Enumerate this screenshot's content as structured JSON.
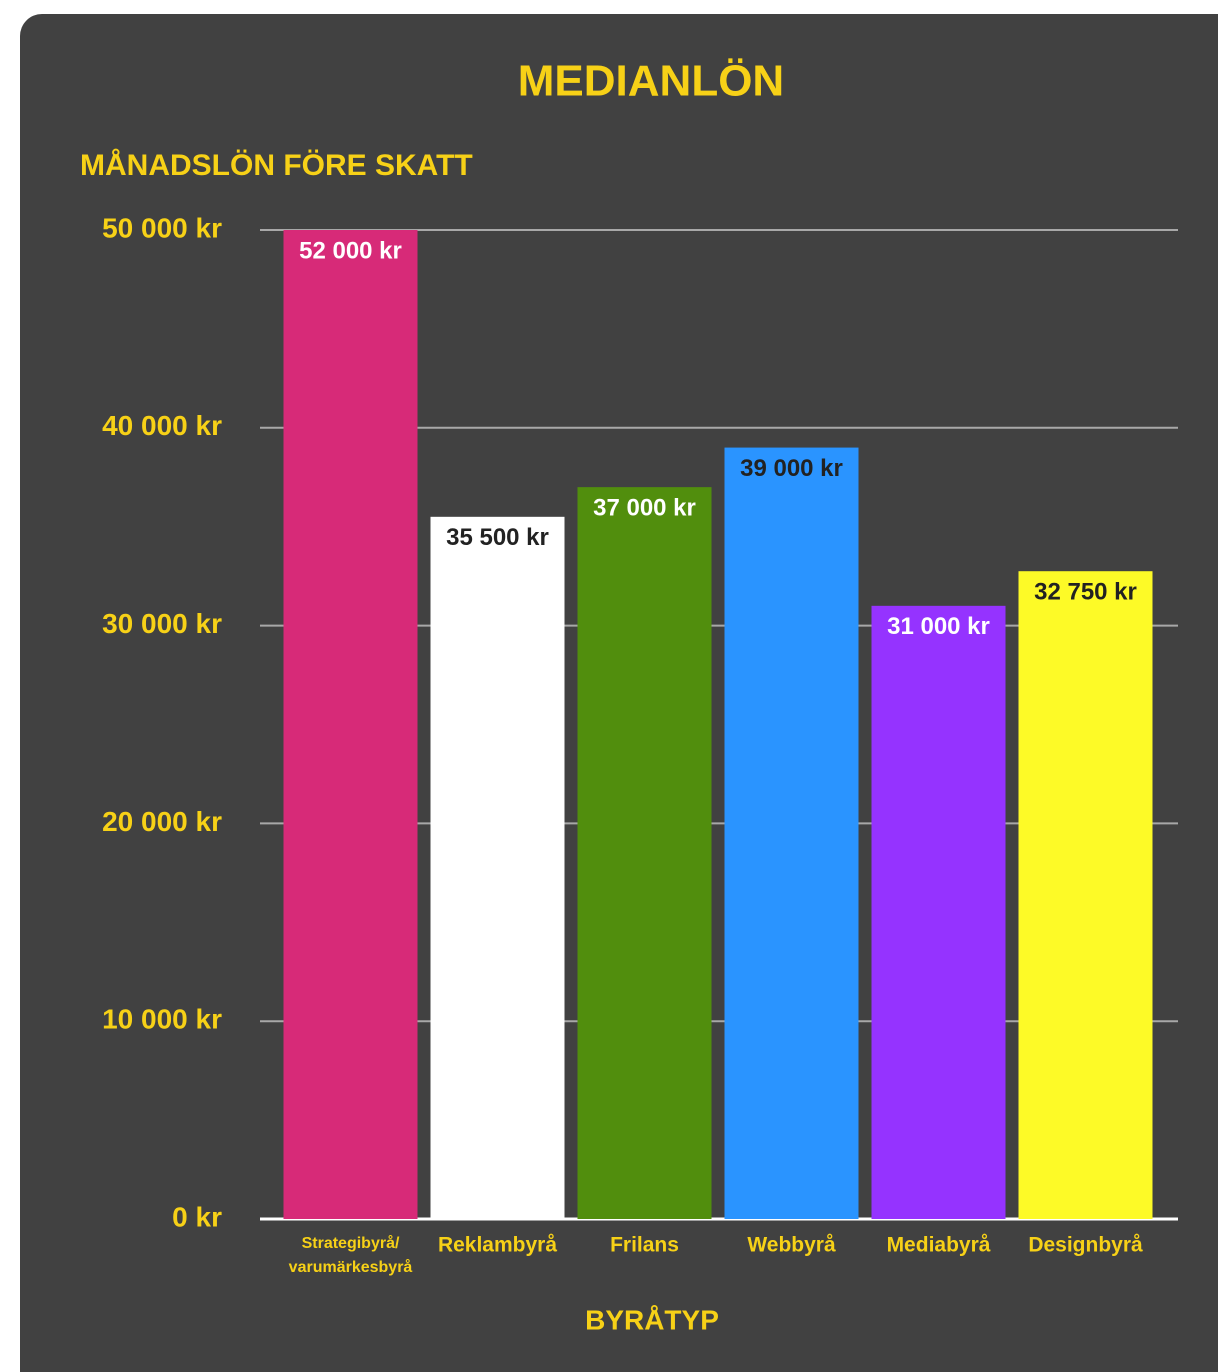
{
  "chart_data": {
    "type": "bar",
    "title": "MEDIANLÖN",
    "y_axis_label": "MÅNADSLÖN FÖRE SKATT",
    "x_axis_label": "BYRÅTYP",
    "categories": [
      "Strategibyrå/ varumärkesbyrå",
      "Reklambyrå",
      "Frilans",
      "Webbyrå",
      "Mediabyrå",
      "Designbyrå"
    ],
    "values": [
      52000,
      35500,
      37000,
      39000,
      31000,
      32750
    ],
    "value_labels": [
      "52 000 kr",
      "35 500 kr",
      "37 000 kr",
      "39 000 kr",
      "31 000 kr",
      "32 750 kr"
    ],
    "colors": [
      "#d72a78",
      "#ffffff",
      "#518e0d",
      "#2a94ff",
      "#9533ff",
      "#fdfa27"
    ],
    "value_label_colors": [
      "#ffffff",
      "#222222",
      "#ffffff",
      "#222222",
      "#ffffff",
      "#222222"
    ],
    "ylim": [
      0,
      50000
    ],
    "yticks": [
      {
        "value": 0,
        "label": "0 kr"
      },
      {
        "value": 10000,
        "label": "10 000 kr"
      },
      {
        "value": 20000,
        "label": "20 000 kr"
      },
      {
        "value": 30000,
        "label": "30 000 kr"
      },
      {
        "value": 40000,
        "label": "40 000 kr"
      },
      {
        "value": 50000,
        "label": "50 000 kr"
      }
    ],
    "grid": true
  }
}
